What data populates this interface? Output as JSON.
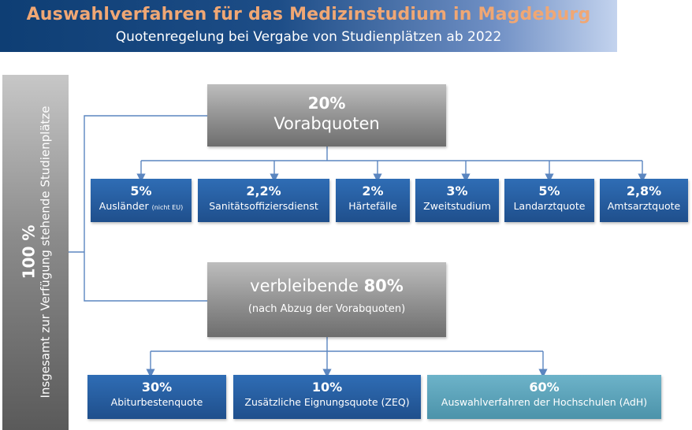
{
  "header": {
    "title": "Auswahlverfahren für das Medizinstudium in Magdeburg",
    "subtitle": "Quotenregelung bei Vergabe von Studienplätzen ab 2022"
  },
  "total": {
    "percent": "100 %",
    "label": "Insgesamt zur Verfügung stehende Studienplätze"
  },
  "vorab": {
    "percent": "20%",
    "label": "Vorabquoten",
    "items": [
      {
        "percent": "5%",
        "label": "Ausländer",
        "note": "(nicht EU)"
      },
      {
        "percent": "2,2%",
        "label": "Sanitätsoffiziersdienst"
      },
      {
        "percent": "2%",
        "label": "Härtefälle"
      },
      {
        "percent": "3%",
        "label": "Zweitstudium"
      },
      {
        "percent": "5%",
        "label": "Landarztquote"
      },
      {
        "percent": "2,8%",
        "label": "Amtsarztquote"
      }
    ]
  },
  "remaining": {
    "prefix": "verbleibende",
    "percent": "80%",
    "note": "(nach Abzug der Vorabquoten)",
    "items": [
      {
        "percent": "30%",
        "label": "Abiturbestenquote"
      },
      {
        "percent": "10%",
        "label": "Zusätzliche Eignungsquote (ZEQ)"
      },
      {
        "percent": "60%",
        "label": "Auswahlverfahren der Hochschulen (AdH)"
      }
    ]
  },
  "colors": {
    "title_orange": "#f0a774",
    "banner_blue": "#0e3e74",
    "box_blue": "#1f4f8c",
    "box_teal": "#5aa3ba",
    "box_gray": "#8c8c8c",
    "connector": "#5b86c0"
  }
}
